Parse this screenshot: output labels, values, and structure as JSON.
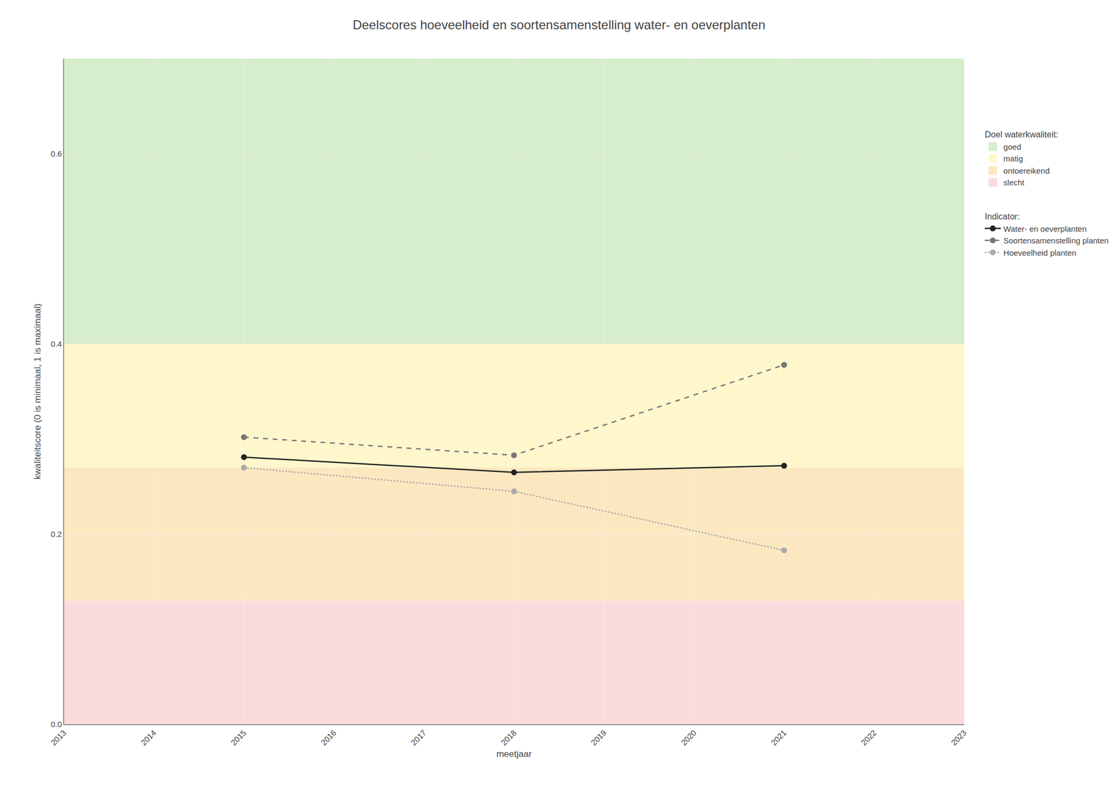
{
  "chart_data": {
    "type": "line",
    "title": "Deelscores hoeveelheid en soortensamenstelling water- en oeverplanten",
    "xlabel": "meetjaar",
    "ylabel": "kwaliteitscore (0 is minimaal, 1 is maximaal)",
    "xlim": [
      2013,
      2023
    ],
    "xticks": [
      2013,
      2014,
      2015,
      2016,
      2017,
      2018,
      2019,
      2020,
      2021,
      2022,
      2023
    ],
    "ylim": [
      0.0,
      0.7
    ],
    "yticks": [
      {
        "value": 0.0,
        "label": "0.0"
      },
      0.2,
      0.4,
      0.6
    ],
    "grid": true,
    "marker": "circle",
    "zones_title": "Doel waterkwaliteit:",
    "zones": [
      {
        "name": "goed",
        "from": 0.4,
        "to": 0.7,
        "color": "#d6eecc"
      },
      {
        "name": "matig",
        "from": 0.27,
        "to": 0.4,
        "color": "#fef7cc"
      },
      {
        "name": "ontoereikend",
        "from": 0.13,
        "to": 0.27,
        "color": "#fce8c0"
      },
      {
        "name": "slecht",
        "from": 0.0,
        "to": 0.13,
        "color": "#fadadd"
      }
    ],
    "series_title": "Indicator:",
    "x": [
      2015,
      2018,
      2021
    ],
    "series": [
      {
        "name": "Water- en oeverplanten",
        "color": "#222222",
        "line_style": "solid",
        "values": [
          0.281,
          0.265,
          0.272
        ]
      },
      {
        "name": "Soortensamenstelling planten",
        "color": "#777777",
        "line_style": "dashed",
        "values": [
          0.302,
          0.283,
          0.378
        ]
      },
      {
        "name": "Hoeveelheid planten",
        "color": "#aaaaaa",
        "line_style": "dotted",
        "values": [
          0.27,
          0.245,
          0.183
        ]
      }
    ]
  }
}
